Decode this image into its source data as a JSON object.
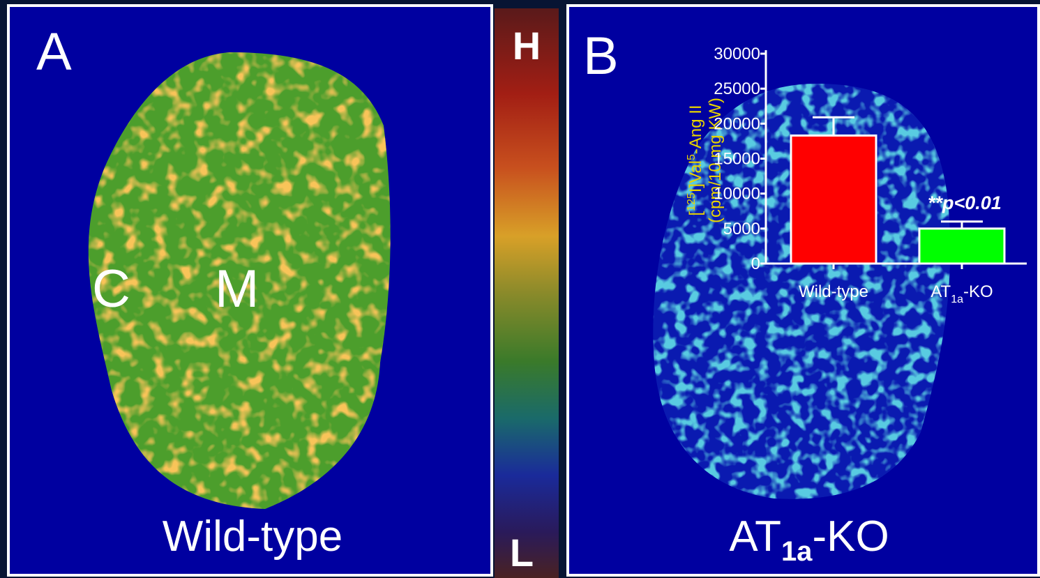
{
  "panels": {
    "a": {
      "letter": "A",
      "cortex": "C",
      "medulla": "M",
      "caption": [
        "Wild-type"
      ]
    },
    "b": {
      "letter": "B",
      "caption": [
        "AT",
        "1a",
        "-KO"
      ]
    }
  },
  "color_scale": {
    "high": "H",
    "low": "L"
  },
  "chart_data": {
    "type": "bar",
    "y_label": [
      [
        "[",
        "125",
        "I]Val",
        "5",
        "-Ang II"
      ],
      [
        "(cpm/10 mg KW)"
      ]
    ],
    "categories": [
      [
        "Wild-type"
      ],
      [
        "AT",
        "1a",
        "-KO"
      ]
    ],
    "values": [
      18300,
      5000
    ],
    "errors": [
      2600,
      1000
    ],
    "colors": [
      "#ff0000",
      "#00ff00"
    ],
    "ylim": [
      0,
      30000
    ],
    "yticks": [
      0,
      5000,
      10000,
      15000,
      20000,
      25000,
      30000
    ],
    "annotations": [
      "**p<0.01"
    ]
  }
}
